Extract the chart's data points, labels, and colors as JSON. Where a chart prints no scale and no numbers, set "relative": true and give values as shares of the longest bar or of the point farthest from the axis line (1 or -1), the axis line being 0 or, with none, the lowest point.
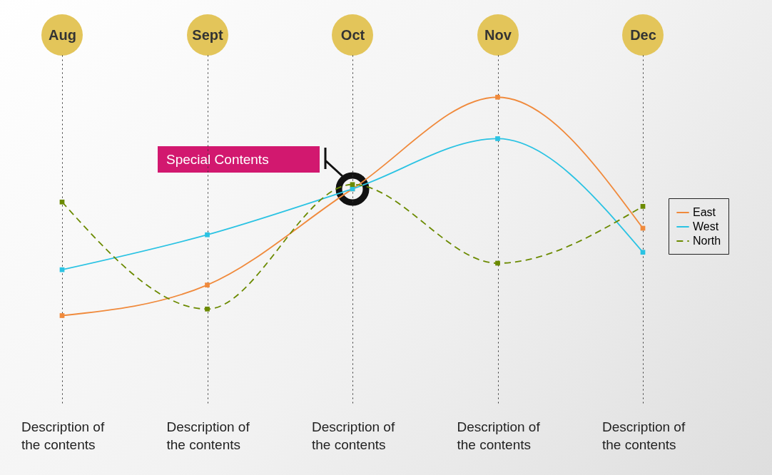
{
  "chart_data": {
    "type": "line",
    "relative": true,
    "categories": [
      "Aug",
      "Sept",
      "Oct",
      "Nov",
      "Dec"
    ],
    "series": [
      {
        "name": "East",
        "color": "#f08a3c",
        "values": [
          0,
          0.14,
          0.58,
          1,
          0.4
        ]
      },
      {
        "name": "West",
        "color": "#2bc3e3",
        "values": [
          0.21,
          0.37,
          0.58,
          0.81,
          0.29
        ]
      },
      {
        "name": "North",
        "color": "#6b8a00",
        "values": [
          0.52,
          0.03,
          0.6,
          0.24,
          0.5
        ],
        "line_style": "dashed"
      }
    ],
    "marker": "square",
    "line_style": "solid",
    "grid": "x",
    "legend": "right",
    "annotations": [
      "Special Contents",
      "Description of the contents",
      "Description of the contents",
      "Description of the contents",
      "Description of the contents",
      "Description of the contents"
    ]
  }
}
